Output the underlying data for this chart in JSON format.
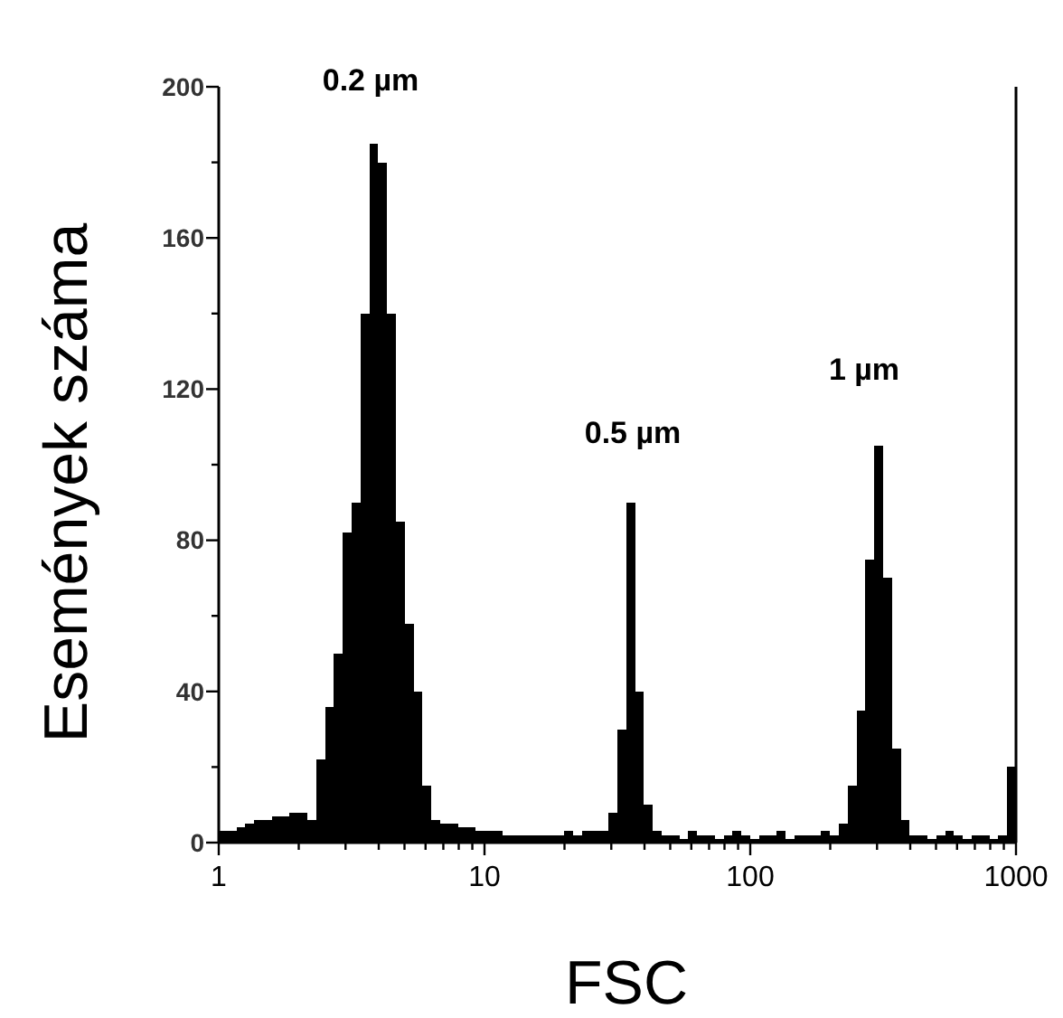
{
  "chart_data": {
    "type": "histogram",
    "xlabel": "FSC",
    "ylabel": "Események száma",
    "color": "#000000",
    "log": "x",
    "xlim": [
      1,
      1000
    ],
    "ylim": [
      0,
      200
    ],
    "xticks": [
      1,
      {
        "value": 2,
        "label": null
      },
      {
        "value": 3,
        "label": null
      },
      {
        "value": 4,
        "label": null
      },
      {
        "value": 5,
        "label": null
      },
      {
        "value": 6,
        "label": null
      },
      {
        "value": 7,
        "label": null
      },
      {
        "value": 8,
        "label": null
      },
      {
        "value": 9,
        "label": null
      },
      10,
      {
        "value": 20,
        "label": null
      },
      {
        "value": 30,
        "label": null
      },
      {
        "value": 40,
        "label": null
      },
      {
        "value": 50,
        "label": null
      },
      {
        "value": 60,
        "label": null
      },
      {
        "value": 70,
        "label": null
      },
      {
        "value": 80,
        "label": null
      },
      {
        "value": 90,
        "label": null
      },
      100,
      {
        "value": 200,
        "label": null
      },
      {
        "value": 300,
        "label": null
      },
      {
        "value": 400,
        "label": null
      },
      {
        "value": 500,
        "label": null
      },
      {
        "value": 600,
        "label": null
      },
      {
        "value": 700,
        "label": null
      },
      {
        "value": 800,
        "label": null
      },
      {
        "value": 900,
        "label": null
      },
      1000
    ],
    "yticks": [
      0,
      {
        "value": 20,
        "label": null
      },
      40,
      {
        "value": 60,
        "label": null
      },
      80,
      {
        "value": 100,
        "label": null
      },
      120,
      {
        "value": 140,
        "label": null
      },
      160,
      {
        "value": 180,
        "label": null
      },
      200
    ],
    "bins": [
      1,
      1.08,
      1.166,
      1.259,
      1.359,
      1.468,
      1.585,
      1.711,
      1.848,
      1.995,
      2.154,
      2.326,
      2.512,
      2.712,
      2.929,
      3.162,
      3.415,
      3.687,
      3.981,
      4.299,
      4.642,
      5.012,
      5.412,
      5.843,
      6.31,
      6.813,
      7.356,
      7.943,
      8.577,
      9.261,
      10,
      10.8,
      11.66,
      12.59,
      13.59,
      14.68,
      15.85,
      17.11,
      18.48,
      19.95,
      21.54,
      23.26,
      25.12,
      27.12,
      29.29,
      31.62,
      34.15,
      36.87,
      39.81,
      42.99,
      46.42,
      50.12,
      54.12,
      58.43,
      63.1,
      68.13,
      73.56,
      79.43,
      85.77,
      92.61,
      100,
      108,
      116.6,
      125.9,
      135.9,
      146.8,
      158.5,
      171.1,
      184.8,
      199.5,
      215.4,
      232.6,
      251.2,
      271.2,
      292.9,
      316.2,
      341.5,
      368.7,
      398.1,
      429.9,
      464.2,
      501.2,
      541.2,
      584.3,
      631,
      681.3,
      735.6,
      794.3,
      857.7,
      926.1,
      1000
    ],
    "values": [
      3,
      3,
      4,
      5,
      6,
      6,
      7,
      7,
      8,
      8,
      6,
      22,
      36,
      50,
      82,
      90,
      140,
      185,
      180,
      140,
      85,
      58,
      40,
      15,
      6,
      5,
      5,
      4,
      4,
      3,
      3,
      3,
      2,
      2,
      2,
      2,
      2,
      2,
      2,
      3,
      2,
      3,
      3,
      3,
      8,
      30,
      90,
      40,
      10,
      3,
      2,
      2,
      1,
      3,
      2,
      2,
      1,
      2,
      3,
      2,
      1,
      2,
      2,
      3,
      1,
      2,
      2,
      2,
      3,
      2,
      5,
      15,
      35,
      75,
      105,
      70,
      25,
      6,
      2,
      2,
      1,
      2,
      3,
      2,
      1,
      2,
      2,
      1,
      2,
      20
    ],
    "annotations": [
      "0.2 µm",
      "0.5 µm",
      "1 µm"
    ]
  }
}
